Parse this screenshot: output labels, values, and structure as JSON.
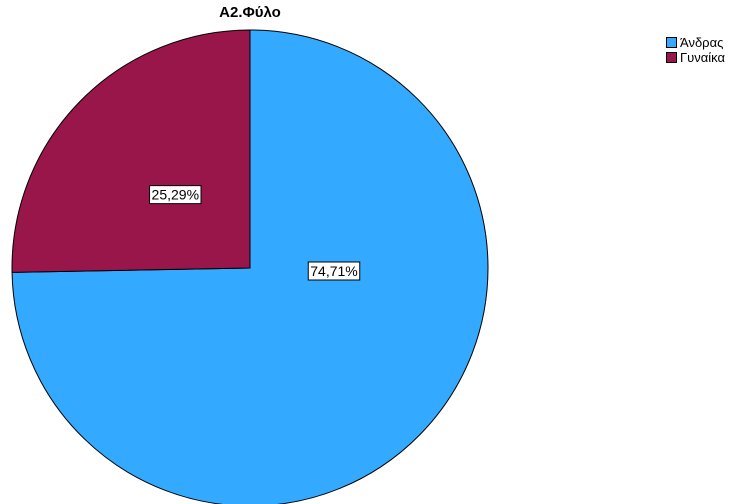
{
  "chart_data": {
    "type": "pie",
    "title": "A2.Φύλο",
    "categories": [
      "Άνδρας",
      "Γυναίκα"
    ],
    "values": [
      74.71,
      25.29
    ],
    "data_labels": [
      "74,71%",
      "25,29%"
    ],
    "colors": [
      "#33aaff",
      "#99164a"
    ],
    "legend_position": "top-right",
    "start_angle_deg": 0,
    "direction": "clockwise"
  }
}
